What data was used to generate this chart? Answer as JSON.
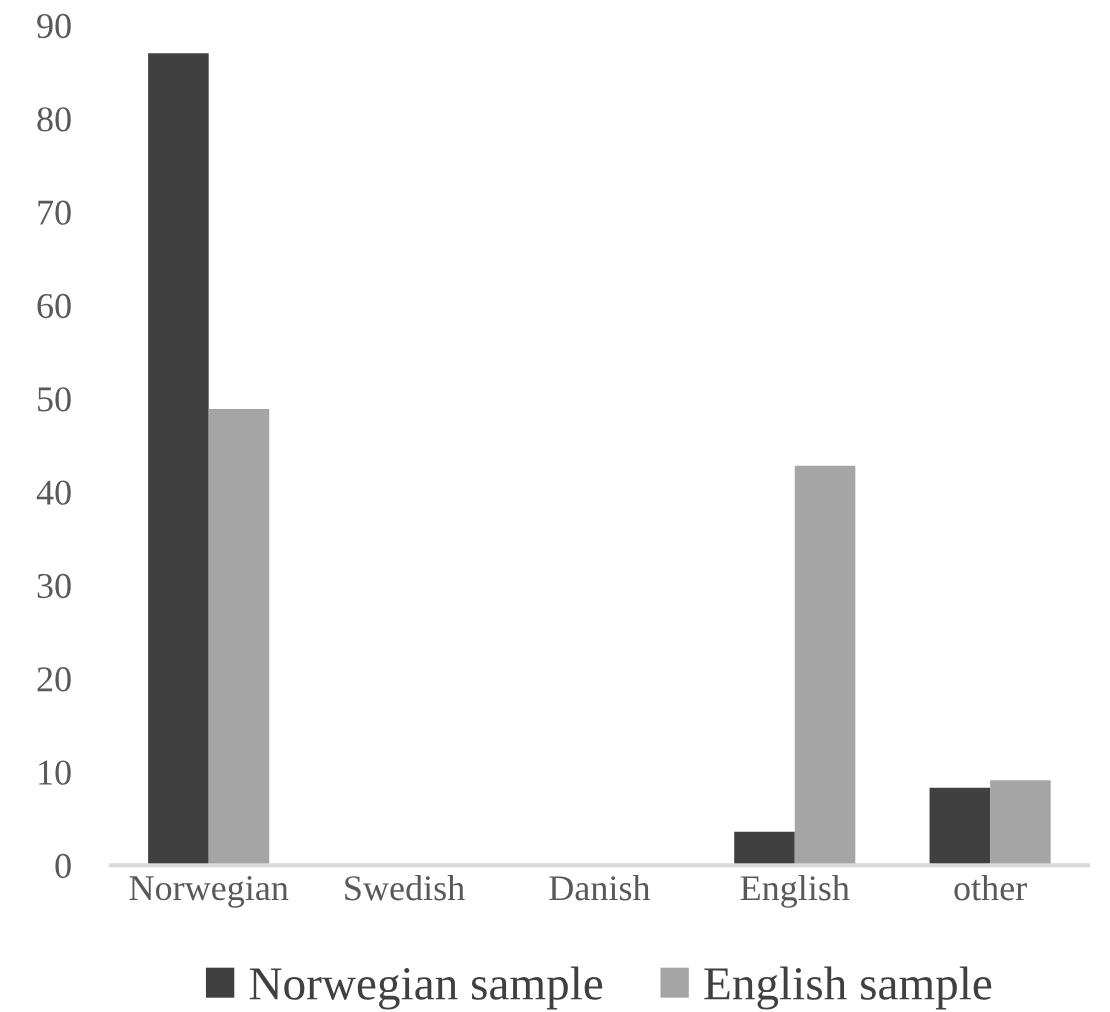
{
  "chart_data": {
    "type": "bar",
    "categories": [
      "Norwegian",
      "Swedish",
      "Danish",
      "English",
      "other"
    ],
    "series": [
      {
        "name": "Norwegian sample",
        "color": "#404040",
        "values": [
          87.0,
          0,
          0,
          3.6,
          8.3
        ]
      },
      {
        "name": "English sample",
        "color": "#a5a5a5",
        "values": [
          48.9,
          0,
          0,
          42.8,
          9.1
        ]
      }
    ],
    "ylim": [
      0,
      90
    ],
    "yticks": [
      0,
      10,
      20,
      30,
      40,
      50,
      60,
      70,
      80,
      90
    ],
    "grid": false,
    "legend": "bottom"
  }
}
